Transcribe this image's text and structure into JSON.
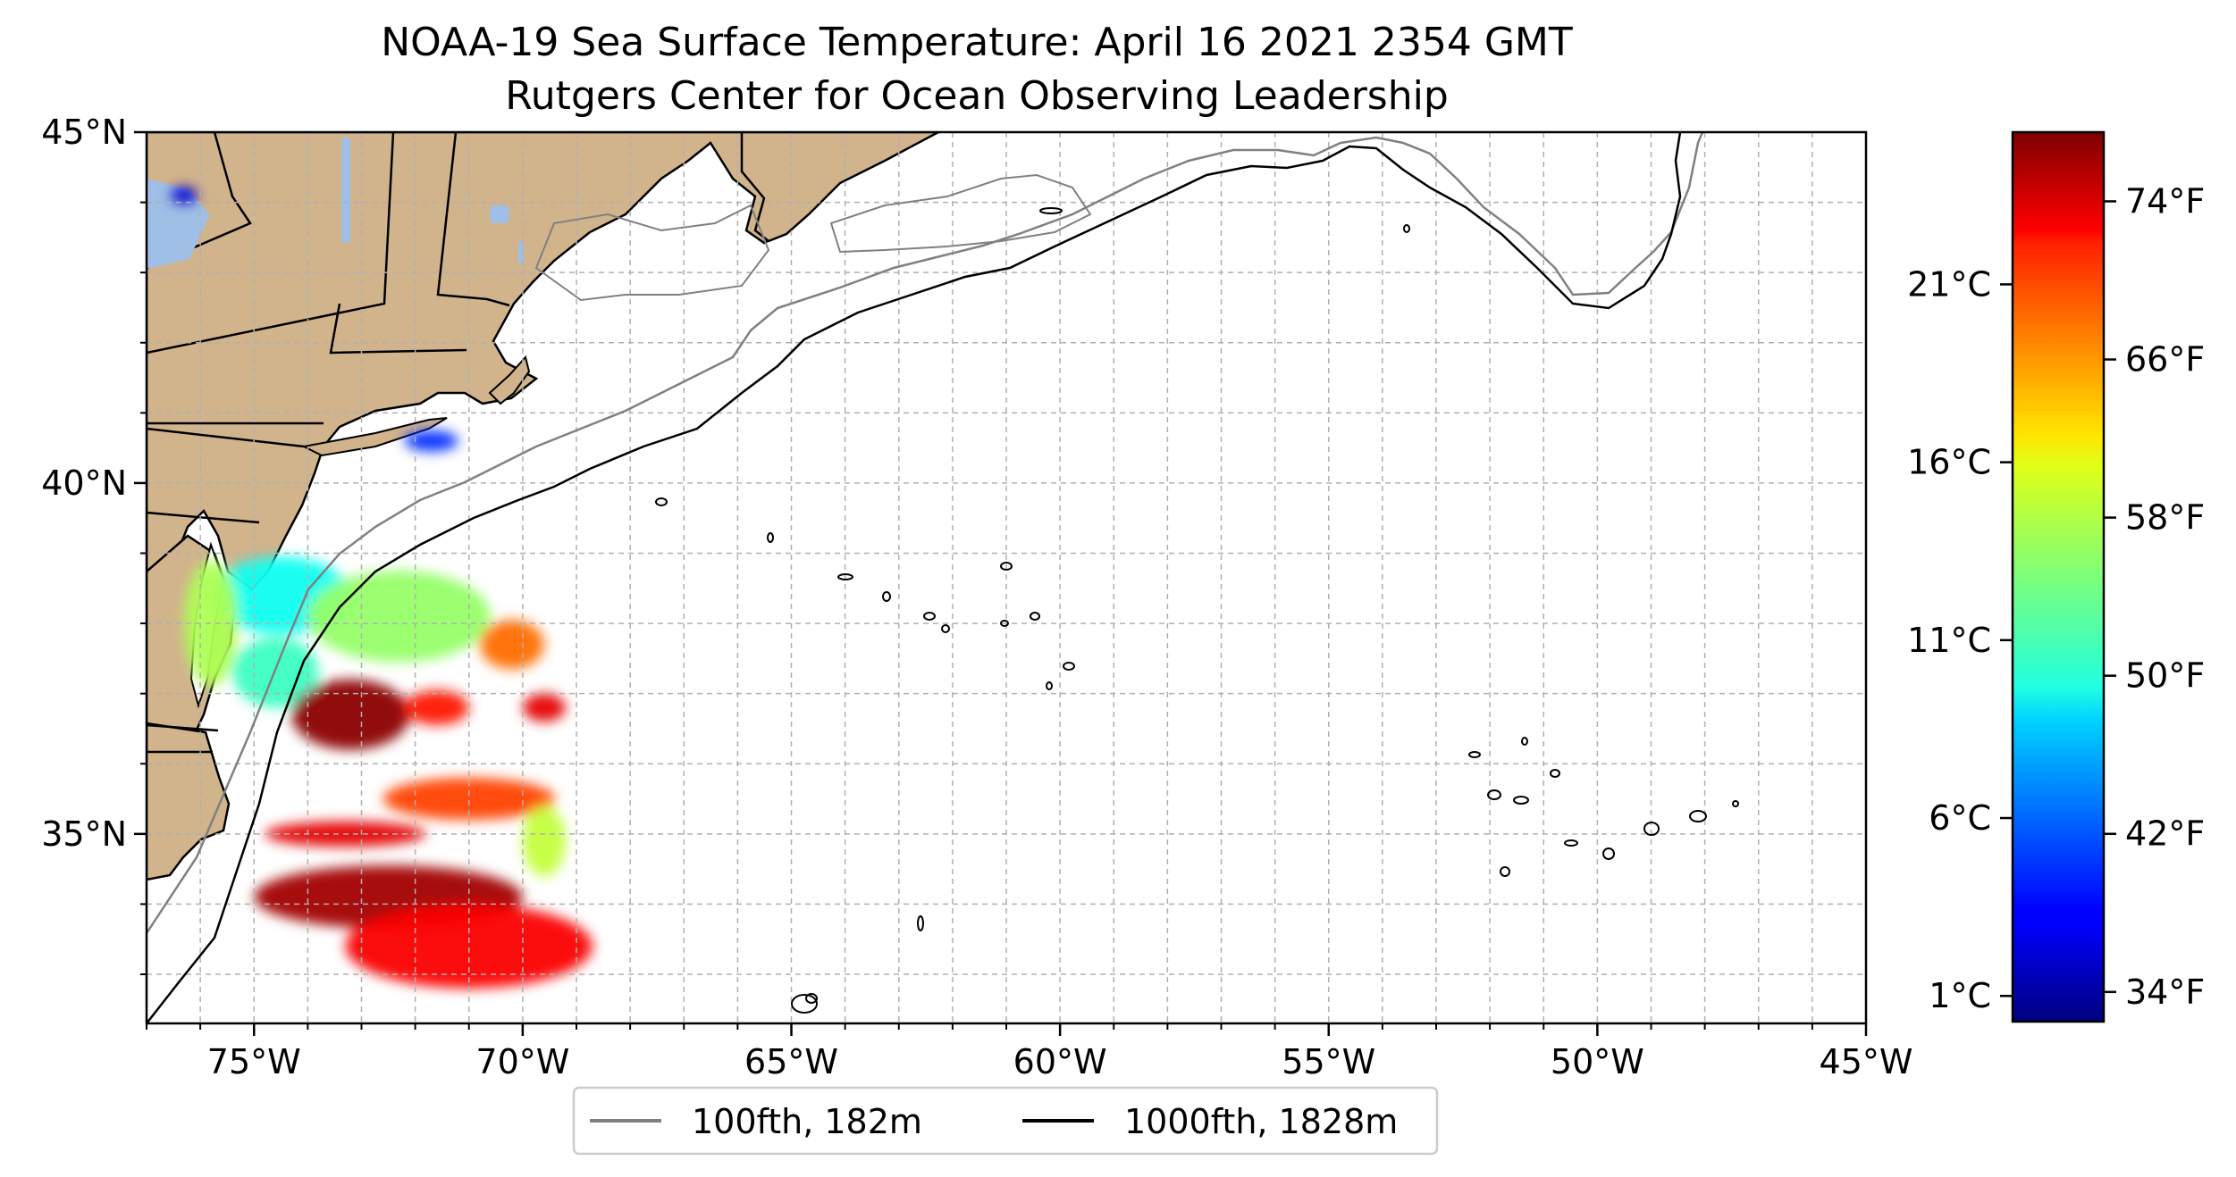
{
  "title": {
    "line1": "NOAA-19 Sea Surface Temperature: April 16 2021 2354 GMT",
    "line2": "Rutgers Center for Ocean Observing Leadership"
  },
  "map": {
    "lon_range": [
      -77,
      -45
    ],
    "lat_range": [
      32.3,
      45
    ],
    "lon_ticks": [
      {
        "value": -75,
        "label": "75°W"
      },
      {
        "value": -70,
        "label": "70°W"
      },
      {
        "value": -65,
        "label": "65°W"
      },
      {
        "value": -60,
        "label": "60°W"
      },
      {
        "value": -55,
        "label": "55°W"
      },
      {
        "value": -50,
        "label": "50°W"
      },
      {
        "value": -45,
        "label": "45°W"
      }
    ],
    "lat_ticks": [
      {
        "value": 45,
        "label": "45°N"
      },
      {
        "value": 40,
        "label": "40°N"
      },
      {
        "value": 35,
        "label": "35°N"
      }
    ],
    "grid": true,
    "colors": {
      "land": "#d2b48c",
      "lakes": "#9fbfe6",
      "ocean": "#ffffff",
      "isobath_100": "#808080",
      "isobath_1000": "#000000",
      "grid": "#b0b0b0"
    }
  },
  "legend": {
    "placement": "bottom-center",
    "items": [
      {
        "label": "100fth, 182m",
        "color": "#808080"
      },
      {
        "label": "1000fth, 1828m",
        "color": "#000000"
      }
    ]
  },
  "colorbar": {
    "colormap": "jet",
    "range_f": [
      32.5,
      77.5
    ],
    "celsius_ticks": [
      {
        "label": "21°C",
        "f": 69.8
      },
      {
        "label": "16°C",
        "f": 60.8
      },
      {
        "label": "11°C",
        "f": 51.8
      },
      {
        "label": "6°C",
        "f": 42.8
      },
      {
        "label": "1°C",
        "f": 33.8
      }
    ],
    "fahrenheit_ticks": [
      {
        "label": "74°F",
        "f": 74
      },
      {
        "label": "66°F",
        "f": 66
      },
      {
        "label": "58°F",
        "f": 58
      },
      {
        "label": "50°F",
        "f": 50
      },
      {
        "label": "42°F",
        "f": 42
      },
      {
        "label": "34°F",
        "f": 34
      }
    ]
  },
  "sst_patches": [
    {
      "lon": -74.5,
      "lat": 38.4,
      "rx": 1.3,
      "ry": 0.55,
      "temp_f": 50
    },
    {
      "lon": -72.3,
      "lat": 38.1,
      "rx": 1.7,
      "ry": 0.65,
      "temp_f": 56
    },
    {
      "lon": -70.2,
      "lat": 37.7,
      "rx": 0.6,
      "ry": 0.35,
      "temp_f": 67
    },
    {
      "lon": -74.6,
      "lat": 37.3,
      "rx": 0.8,
      "ry": 0.5,
      "temp_f": 52
    },
    {
      "lon": -73.2,
      "lat": 36.7,
      "rx": 1.1,
      "ry": 0.5,
      "temp_f": 77
    },
    {
      "lon": -71.6,
      "lat": 36.8,
      "rx": 0.6,
      "ry": 0.25,
      "temp_f": 71
    },
    {
      "lon": -69.6,
      "lat": 36.8,
      "rx": 0.4,
      "ry": 0.2,
      "temp_f": 73
    },
    {
      "lon": -71.0,
      "lat": 35.5,
      "rx": 1.6,
      "ry": 0.3,
      "temp_f": 69
    },
    {
      "lon": -73.3,
      "lat": 35.0,
      "rx": 1.5,
      "ry": 0.18,
      "temp_f": 73
    },
    {
      "lon": -69.6,
      "lat": 34.9,
      "rx": 0.4,
      "ry": 0.5,
      "temp_f": 58
    },
    {
      "lon": -72.5,
      "lat": 34.1,
      "rx": 2.5,
      "ry": 0.45,
      "temp_f": 76
    },
    {
      "lon": -71.0,
      "lat": 33.4,
      "rx": 2.3,
      "ry": 0.6,
      "temp_f": 72
    },
    {
      "lon": -75.8,
      "lat": 38.0,
      "rx": 0.5,
      "ry": 0.9,
      "temp_f": 57
    },
    {
      "lon": -71.7,
      "lat": 40.6,
      "rx": 0.5,
      "ry": 0.15,
      "temp_f": 40
    },
    {
      "lon": -76.3,
      "lat": 44.1,
      "rx": 0.25,
      "ry": 0.12,
      "temp_f": 36
    }
  ]
}
